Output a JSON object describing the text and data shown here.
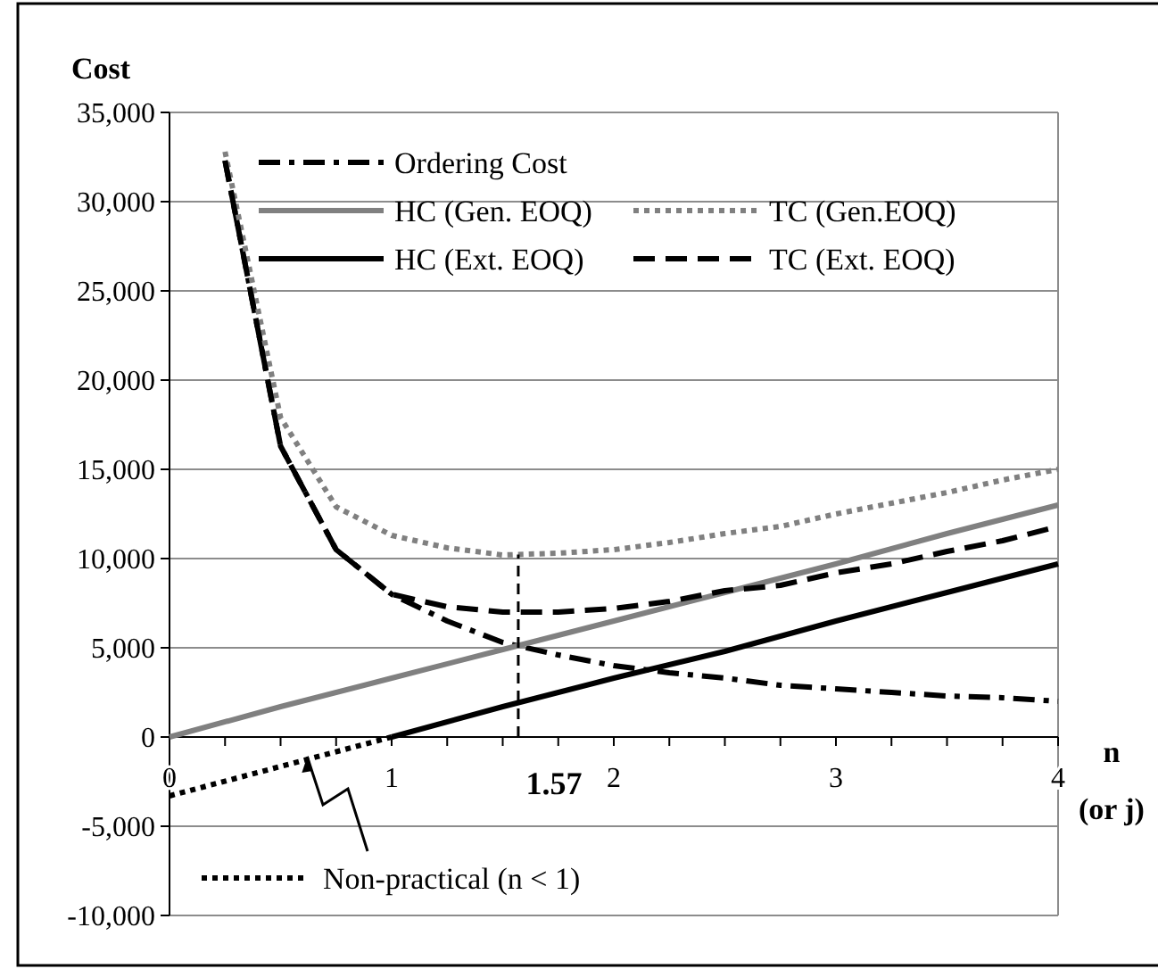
{
  "chart_data": {
    "type": "line",
    "ylabel": "Cost",
    "xlabel": "n (or j)",
    "xlim": [
      0,
      4
    ],
    "xticks": [
      0,
      {
        "value": 0.25,
        "label": null
      },
      {
        "value": 0.5,
        "label": null
      },
      {
        "value": 0.75,
        "label": null
      },
      1,
      {
        "value": 1.25,
        "label": null
      },
      {
        "value": 1.5,
        "label": null
      },
      {
        "value": 1.75,
        "label": null
      },
      2,
      {
        "value": 2.25,
        "label": null
      },
      {
        "value": 2.5,
        "label": null
      },
      {
        "value": 2.75,
        "label": null
      },
      3,
      {
        "value": 3.25,
        "label": null
      },
      {
        "value": 3.5,
        "label": null
      },
      {
        "value": 3.75,
        "label": null
      },
      4
    ],
    "ylim": [
      -10000,
      35000
    ],
    "yticks": [
      {
        "value": -10000,
        "label": "-10,000"
      },
      {
        "value": -5000,
        "label": "-5,000"
      },
      0,
      {
        "value": 5000,
        "label": "5,000"
      },
      {
        "value": 10000,
        "label": "10,000"
      },
      {
        "value": 15000,
        "label": "15,000"
      },
      {
        "value": 20000,
        "label": "20,000"
      },
      {
        "value": 25000,
        "label": "25,000"
      },
      {
        "value": 30000,
        "label": "30,000"
      },
      {
        "value": 35000,
        "label": "35,000"
      }
    ],
    "grid": "y",
    "legend": "left",
    "ref_lines": [
      {
        "axis": "x",
        "value": 1.57,
        "label": "1.57",
        "color": "#000000",
        "line_style": "dashed"
      }
    ],
    "series": [
      {
        "name": "Ordering Cost",
        "color": "#000000",
        "line_style": "dashdot",
        "x": [
          0.25,
          0.5,
          0.75,
          1,
          1.25,
          1.5,
          1.75,
          2,
          2.25,
          2.5,
          2.75,
          3,
          3.25,
          3.5,
          3.75,
          4
        ],
        "values": [
          32300,
          16300,
          10500,
          8000,
          6500,
          5300,
          4600,
          4000,
          3600,
          3300,
          2900,
          2700,
          2500,
          2300,
          2200,
          2000
        ]
      },
      {
        "name": "HC (Gen. EOQ)",
        "color": "#808080",
        "line_style": "solid",
        "x": [
          0,
          0.5,
          1,
          1.5,
          2,
          2.5,
          3,
          3.5,
          4
        ],
        "values": [
          0,
          1700,
          3300,
          4900,
          6500,
          8100,
          9700,
          11400,
          13000
        ]
      },
      {
        "name": "TC (Gen.EOQ)",
        "color": "#808080",
        "line_style": "dotted",
        "x": [
          0.25,
          0.5,
          0.75,
          1,
          1.25,
          1.5,
          1.75,
          2,
          2.25,
          2.5,
          2.75,
          3,
          3.25,
          3.5,
          3.75,
          4
        ],
        "values": [
          32800,
          17900,
          12900,
          11300,
          10600,
          10200,
          10300,
          10500,
          10900,
          11400,
          11800,
          12500,
          13100,
          13700,
          14400,
          15000
        ]
      },
      {
        "name": "HC (Ext. EOQ)",
        "color": "#000000",
        "line_style": "solid",
        "x": [
          1,
          1.5,
          2,
          2.5,
          3,
          3.5,
          4
        ],
        "values": [
          0,
          1700,
          3300,
          4800,
          6500,
          8100,
          9700
        ]
      },
      {
        "name": "TC (Ext. EOQ)",
        "color": "#000000",
        "line_style": "dashed",
        "x": [
          0.25,
          0.5,
          0.75,
          1,
          1.25,
          1.5,
          1.75,
          2,
          2.25,
          2.5,
          2.75,
          3,
          3.25,
          3.5,
          3.75,
          4
        ],
        "values": [
          32300,
          16300,
          10500,
          8000,
          7300,
          7000,
          7000,
          7200,
          7600,
          8200,
          8500,
          9200,
          9700,
          10400,
          11000,
          11800
        ]
      },
      {
        "name": "Non-practical (n < 1)",
        "color": "#000000",
        "line_style": "dotted",
        "x": [
          0,
          1
        ],
        "values": [
          -3300,
          0
        ]
      }
    ]
  }
}
